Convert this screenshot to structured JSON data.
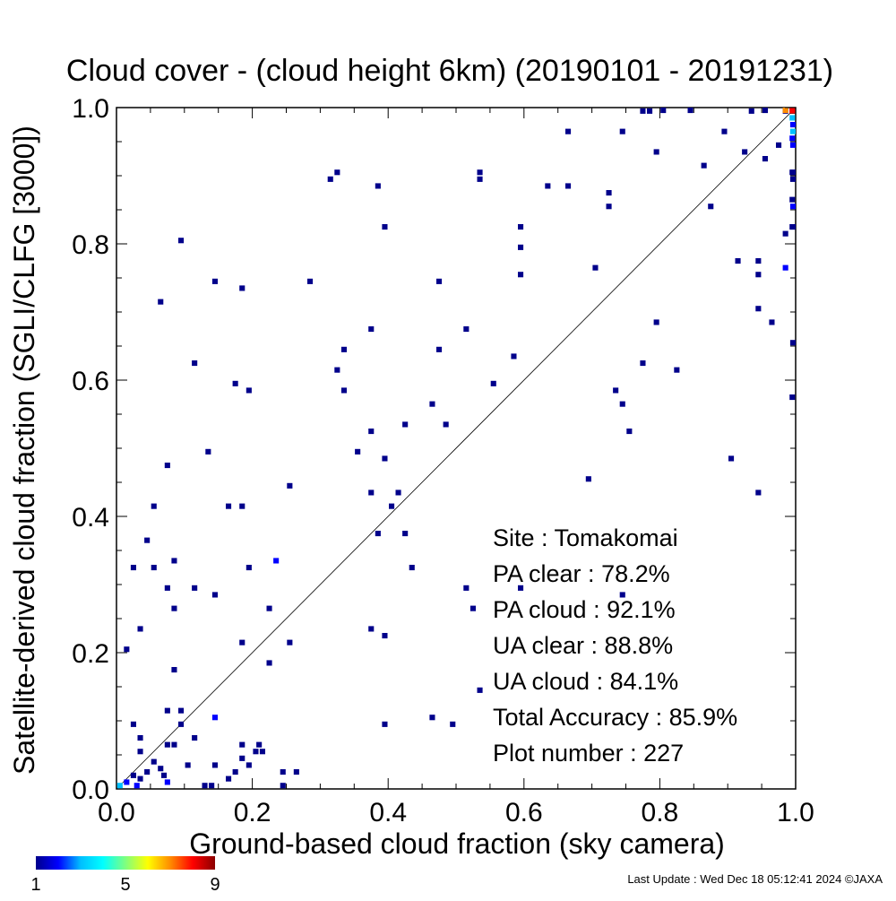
{
  "chart_data": {
    "type": "heatmap",
    "title": "Cloud cover - (cloud height 6km)  (20190101 - 20191231)",
    "xlabel": "Ground-based cloud fraction (sky camera)",
    "ylabel": "Satellite-derived cloud fraction (SGLI/CLFG [3000])",
    "xlim": [
      0.0,
      1.0
    ],
    "ylim": [
      0.0,
      1.0
    ],
    "x_ticks": [
      "0.0",
      "0.2",
      "0.4",
      "0.6",
      "0.8",
      "1.0"
    ],
    "y_ticks": [
      "0.0",
      "0.2",
      "0.4",
      "0.6",
      "0.8",
      "1.0"
    ],
    "diagonal_reference_line": true,
    "grid": false,
    "stats": [
      {
        "label": "Site : Tomakomai",
        "value": ""
      },
      {
        "label": "PA clear :",
        "value": "78.2%"
      },
      {
        "label": "PA cloud :",
        "value": "92.1%"
      },
      {
        "label": "UA clear :",
        "value": "88.8%"
      },
      {
        "label": "UA cloud :",
        "value": "84.1%"
      },
      {
        "label": "Total Accuracy :",
        "value": "85.9%"
      },
      {
        "label": "Plot number :",
        "value": "227"
      }
    ],
    "colorbar": {
      "min": 1,
      "max": 9,
      "tick_labels": [
        "1",
        "5",
        "9"
      ],
      "colors": [
        "#00008b",
        "#0000ff",
        "#00bfff",
        "#00ffff",
        "#7fff7f",
        "#ffff00",
        "#ff8c00",
        "#ff0000",
        "#8b0000"
      ]
    },
    "points": [
      {
        "x": 0.005,
        "y": 0.005,
        "count": 3
      },
      {
        "x": 0.015,
        "y": 0.01,
        "count": 2
      },
      {
        "x": 0.025,
        "y": 0.02,
        "count": 1
      },
      {
        "x": 0.03,
        "y": 0.005,
        "count": 2
      },
      {
        "x": 0.035,
        "y": 0.015,
        "count": 1
      },
      {
        "x": 0.045,
        "y": 0.025,
        "count": 1
      },
      {
        "x": 0.055,
        "y": 0.04,
        "count": 1
      },
      {
        "x": 0.065,
        "y": 0.03,
        "count": 1
      },
      {
        "x": 0.07,
        "y": 0.02,
        "count": 1
      },
      {
        "x": 0.075,
        "y": 0.01,
        "count": 2
      },
      {
        "x": 0.085,
        "y": 0.065,
        "count": 1
      },
      {
        "x": 0.075,
        "y": 0.065,
        "count": 1
      },
      {
        "x": 0.105,
        "y": 0.035,
        "count": 1
      },
      {
        "x": 0.115,
        "y": 0.075,
        "count": 1
      },
      {
        "x": 0.13,
        "y": 0.005,
        "count": 1
      },
      {
        "x": 0.14,
        "y": 0.005,
        "count": 1
      },
      {
        "x": 0.145,
        "y": 0.035,
        "count": 1
      },
      {
        "x": 0.165,
        "y": 0.015,
        "count": 1
      },
      {
        "x": 0.175,
        "y": 0.025,
        "count": 1
      },
      {
        "x": 0.185,
        "y": 0.045,
        "count": 1
      },
      {
        "x": 0.185,
        "y": 0.065,
        "count": 1
      },
      {
        "x": 0.195,
        "y": 0.035,
        "count": 1
      },
      {
        "x": 0.205,
        "y": 0.055,
        "count": 1
      },
      {
        "x": 0.21,
        "y": 0.065,
        "count": 1
      },
      {
        "x": 0.215,
        "y": 0.055,
        "count": 1
      },
      {
        "x": 0.245,
        "y": 0.025,
        "count": 1
      },
      {
        "x": 0.245,
        "y": 0.005,
        "count": 1
      },
      {
        "x": 0.265,
        "y": 0.025,
        "count": 1
      },
      {
        "x": 0.015,
        "y": 0.205,
        "count": 1
      },
      {
        "x": 0.025,
        "y": 0.095,
        "count": 1
      },
      {
        "x": 0.035,
        "y": 0.075,
        "count": 1
      },
      {
        "x": 0.035,
        "y": 0.055,
        "count": 1
      },
      {
        "x": 0.075,
        "y": 0.115,
        "count": 1
      },
      {
        "x": 0.085,
        "y": 0.175,
        "count": 1
      },
      {
        "x": 0.095,
        "y": 0.115,
        "count": 1
      },
      {
        "x": 0.095,
        "y": 0.095,
        "count": 1
      },
      {
        "x": 0.145,
        "y": 0.105,
        "count": 2
      },
      {
        "x": 0.025,
        "y": 0.325,
        "count": 1
      },
      {
        "x": 0.035,
        "y": 0.235,
        "count": 1
      },
      {
        "x": 0.045,
        "y": 0.365,
        "count": 1
      },
      {
        "x": 0.055,
        "y": 0.325,
        "count": 1
      },
      {
        "x": 0.055,
        "y": 0.415,
        "count": 1
      },
      {
        "x": 0.075,
        "y": 0.295,
        "count": 1
      },
      {
        "x": 0.085,
        "y": 0.265,
        "count": 1
      },
      {
        "x": 0.085,
        "y": 0.335,
        "count": 1
      },
      {
        "x": 0.075,
        "y": 0.475,
        "count": 1
      },
      {
        "x": 0.115,
        "y": 0.295,
        "count": 1
      },
      {
        "x": 0.135,
        "y": 0.495,
        "count": 1
      },
      {
        "x": 0.145,
        "y": 0.285,
        "count": 1
      },
      {
        "x": 0.165,
        "y": 0.415,
        "count": 1
      },
      {
        "x": 0.185,
        "y": 0.415,
        "count": 1
      },
      {
        "x": 0.185,
        "y": 0.215,
        "count": 1
      },
      {
        "x": 0.195,
        "y": 0.325,
        "count": 1
      },
      {
        "x": 0.225,
        "y": 0.265,
        "count": 1
      },
      {
        "x": 0.225,
        "y": 0.185,
        "count": 1
      },
      {
        "x": 0.235,
        "y": 0.335,
        "count": 2
      },
      {
        "x": 0.255,
        "y": 0.215,
        "count": 1
      },
      {
        "x": 0.255,
        "y": 0.445,
        "count": 1
      },
      {
        "x": 0.065,
        "y": 0.715,
        "count": 1
      },
      {
        "x": 0.095,
        "y": 0.805,
        "count": 1
      },
      {
        "x": 0.115,
        "y": 0.625,
        "count": 1
      },
      {
        "x": 0.145,
        "y": 0.745,
        "count": 1
      },
      {
        "x": 0.175,
        "y": 0.595,
        "count": 1
      },
      {
        "x": 0.185,
        "y": 0.735,
        "count": 1
      },
      {
        "x": 0.195,
        "y": 0.585,
        "count": 1
      },
      {
        "x": 0.285,
        "y": 0.745,
        "count": 1
      },
      {
        "x": 0.315,
        "y": 0.895,
        "count": 1
      },
      {
        "x": 0.325,
        "y": 0.905,
        "count": 1
      },
      {
        "x": 0.325,
        "y": 0.615,
        "count": 1
      },
      {
        "x": 0.335,
        "y": 0.645,
        "count": 1
      },
      {
        "x": 0.335,
        "y": 0.585,
        "count": 1
      },
      {
        "x": 0.355,
        "y": 0.495,
        "count": 1
      },
      {
        "x": 0.375,
        "y": 0.675,
        "count": 1
      },
      {
        "x": 0.375,
        "y": 0.525,
        "count": 1
      },
      {
        "x": 0.375,
        "y": 0.435,
        "count": 1
      },
      {
        "x": 0.375,
        "y": 0.235,
        "count": 1
      },
      {
        "x": 0.385,
        "y": 0.885,
        "count": 1
      },
      {
        "x": 0.385,
        "y": 0.375,
        "count": 1
      },
      {
        "x": 0.395,
        "y": 0.825,
        "count": 1
      },
      {
        "x": 0.395,
        "y": 0.485,
        "count": 1
      },
      {
        "x": 0.395,
        "y": 0.225,
        "count": 1
      },
      {
        "x": 0.395,
        "y": 0.095,
        "count": 1
      },
      {
        "x": 0.405,
        "y": 0.415,
        "count": 1
      },
      {
        "x": 0.415,
        "y": 0.435,
        "count": 1
      },
      {
        "x": 0.425,
        "y": 0.535,
        "count": 1
      },
      {
        "x": 0.425,
        "y": 0.375,
        "count": 1
      },
      {
        "x": 0.435,
        "y": 0.325,
        "count": 1
      },
      {
        "x": 0.465,
        "y": 0.565,
        "count": 1
      },
      {
        "x": 0.465,
        "y": 0.105,
        "count": 1
      },
      {
        "x": 0.475,
        "y": 0.745,
        "count": 1
      },
      {
        "x": 0.475,
        "y": 0.645,
        "count": 1
      },
      {
        "x": 0.485,
        "y": 0.535,
        "count": 1
      },
      {
        "x": 0.495,
        "y": 0.095,
        "count": 1
      },
      {
        "x": 0.515,
        "y": 0.675,
        "count": 1
      },
      {
        "x": 0.515,
        "y": 0.295,
        "count": 1
      },
      {
        "x": 0.525,
        "y": 0.265,
        "count": 1
      },
      {
        "x": 0.535,
        "y": 0.895,
        "count": 1
      },
      {
        "x": 0.535,
        "y": 0.905,
        "count": 1
      },
      {
        "x": 0.535,
        "y": 0.145,
        "count": 1
      },
      {
        "x": 0.555,
        "y": 0.595,
        "count": 1
      },
      {
        "x": 0.585,
        "y": 0.635,
        "count": 1
      },
      {
        "x": 0.595,
        "y": 0.825,
        "count": 1
      },
      {
        "x": 0.595,
        "y": 0.795,
        "count": 1
      },
      {
        "x": 0.595,
        "y": 0.755,
        "count": 1
      },
      {
        "x": 0.595,
        "y": 0.295,
        "count": 1
      },
      {
        "x": 0.635,
        "y": 0.885,
        "count": 1
      },
      {
        "x": 0.665,
        "y": 0.965,
        "count": 1
      },
      {
        "x": 0.665,
        "y": 0.885,
        "count": 1
      },
      {
        "x": 0.695,
        "y": 0.455,
        "count": 1
      },
      {
        "x": 0.705,
        "y": 0.765,
        "count": 1
      },
      {
        "x": 0.725,
        "y": 0.875,
        "count": 1
      },
      {
        "x": 0.725,
        "y": 0.855,
        "count": 1
      },
      {
        "x": 0.735,
        "y": 0.585,
        "count": 1
      },
      {
        "x": 0.745,
        "y": 0.965,
        "count": 1
      },
      {
        "x": 0.745,
        "y": 0.565,
        "count": 1
      },
      {
        "x": 0.745,
        "y": 0.285,
        "count": 1
      },
      {
        "x": 0.755,
        "y": 0.525,
        "count": 1
      },
      {
        "x": 0.775,
        "y": 0.995,
        "count": 1
      },
      {
        "x": 0.775,
        "y": 0.625,
        "count": 1
      },
      {
        "x": 0.785,
        "y": 0.995,
        "count": 1
      },
      {
        "x": 0.795,
        "y": 0.935,
        "count": 1
      },
      {
        "x": 0.795,
        "y": 0.685,
        "count": 1
      },
      {
        "x": 0.805,
        "y": 1.005,
        "count": 1
      },
      {
        "x": 0.825,
        "y": 0.615,
        "count": 1
      },
      {
        "x": 0.845,
        "y": 1.005,
        "count": 1
      },
      {
        "x": 0.865,
        "y": 0.915,
        "count": 1
      },
      {
        "x": 0.875,
        "y": 0.855,
        "count": 1
      },
      {
        "x": 0.895,
        "y": 0.965,
        "count": 1
      },
      {
        "x": 0.905,
        "y": 0.485,
        "count": 1
      },
      {
        "x": 0.915,
        "y": 0.775,
        "count": 1
      },
      {
        "x": 0.925,
        "y": 0.935,
        "count": 1
      },
      {
        "x": 0.935,
        "y": 0.995,
        "count": 1
      },
      {
        "x": 0.945,
        "y": 0.775,
        "count": 1
      },
      {
        "x": 0.945,
        "y": 0.755,
        "count": 1
      },
      {
        "x": 0.945,
        "y": 0.705,
        "count": 1
      },
      {
        "x": 0.945,
        "y": 0.435,
        "count": 1
      },
      {
        "x": 0.955,
        "y": 1.005,
        "count": 1
      },
      {
        "x": 0.955,
        "y": 0.925,
        "count": 1
      },
      {
        "x": 0.965,
        "y": 0.685,
        "count": 1
      },
      {
        "x": 0.975,
        "y": 0.945,
        "count": 1
      },
      {
        "x": 0.985,
        "y": 0.995,
        "count": 1
      },
      {
        "x": 0.985,
        "y": 0.815,
        "count": 1
      },
      {
        "x": 0.985,
        "y": 0.765,
        "count": 2
      },
      {
        "x": 0.995,
        "y": 0.905,
        "count": 1
      },
      {
        "x": 0.995,
        "y": 0.865,
        "count": 1
      },
      {
        "x": 0.995,
        "y": 0.825,
        "count": 1
      },
      {
        "x": 0.995,
        "y": 0.575,
        "count": 1
      },
      {
        "x": 0.995,
        "y": 0.995,
        "count": 9
      },
      {
        "x": 0.985,
        "y": 1.005,
        "count": 7
      },
      {
        "x": 0.995,
        "y": 1.005,
        "count": 8
      },
      {
        "x": 0.995,
        "y": 0.985,
        "count": 3
      },
      {
        "x": 1.005,
        "y": 0.975,
        "count": 2
      },
      {
        "x": 1.005,
        "y": 0.965,
        "count": 3
      },
      {
        "x": 0.995,
        "y": 0.955,
        "count": 2
      },
      {
        "x": 1.005,
        "y": 0.945,
        "count": 2
      },
      {
        "x": 1.005,
        "y": 0.905,
        "count": 1
      },
      {
        "x": 1.005,
        "y": 0.895,
        "count": 1
      },
      {
        "x": 1.005,
        "y": 0.855,
        "count": 2
      },
      {
        "x": 1.005,
        "y": 0.825,
        "count": 1
      },
      {
        "x": 1.005,
        "y": 0.655,
        "count": 1
      }
    ]
  },
  "footer": {
    "last_update": "Last Update : Wed Dec 18 05:12:41 2024  ©JAXA"
  }
}
